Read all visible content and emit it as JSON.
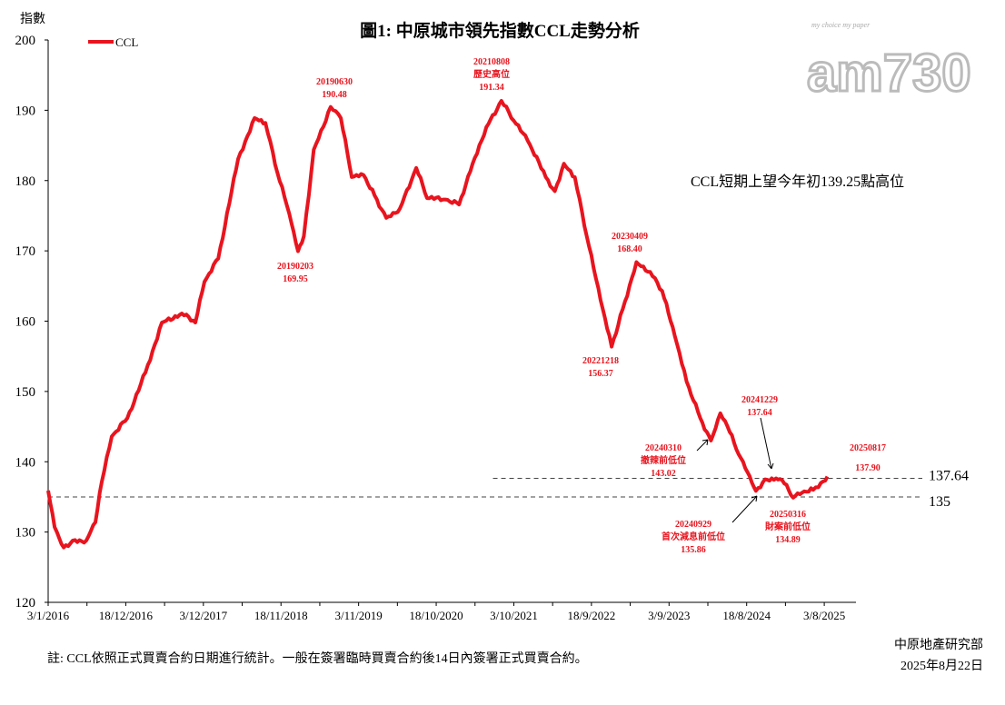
{
  "chart_data": {
    "type": "line",
    "title": "圖1: 中原城市領先指數CCL走勢分析",
    "ylabel": "指數",
    "xlabel": "",
    "ylim": [
      120,
      200
    ],
    "yticks": [
      120,
      130,
      140,
      150,
      160,
      170,
      180,
      190,
      200
    ],
    "xlim": [
      "2016-01-03",
      "2025-12-24"
    ],
    "xtick_labels": [
      "3/1/2016",
      "18/12/2016",
      "3/12/2017",
      "18/11/2018",
      "3/11/2019",
      "18/10/2020",
      "3/10/2021",
      "18/9/2022",
      "3/9/2023",
      "18/8/2024",
      "3/8/2025"
    ],
    "xtick_dates": [
      "2016-01-03",
      "2016-12-18",
      "2017-12-03",
      "2018-11-18",
      "2019-11-03",
      "2020-10-18",
      "2021-10-03",
      "2022-09-18",
      "2023-09-03",
      "2024-08-18",
      "2025-08-03"
    ],
    "grid": false,
    "legend_placement": "top-left",
    "series": [
      {
        "name": "CCL",
        "color": "#e8141e",
        "x": [
          "2016-01-03",
          "2016-02-01",
          "2016-03-13",
          "2016-04-23",
          "2016-06-23",
          "2016-08-03",
          "2016-09-01",
          "2016-10-16",
          "2016-12-25",
          "2017-03-17",
          "2017-05-30",
          "2017-08-28",
          "2017-10-28",
          "2017-12-08",
          "2018-02-08",
          "2018-05-09",
          "2018-07-22",
          "2018-09-09",
          "2018-11-02",
          "2018-12-25",
          "2019-02-03",
          "2019-03-01",
          "2019-04-15",
          "2019-06-30",
          "2019-08-15",
          "2019-10-03",
          "2019-11-25",
          "2020-01-14",
          "2020-03-07",
          "2020-05-07",
          "2020-07-20",
          "2020-09-07",
          "2020-11-28",
          "2021-01-29",
          "2021-03-31",
          "2021-06-01",
          "2021-08-08",
          "2021-10-03",
          "2021-12-04",
          "2022-02-24",
          "2022-04-06",
          "2022-05-17",
          "2022-07-05",
          "2022-08-28",
          "2022-10-29",
          "2022-12-18",
          "2023-02-06",
          "2023-04-09",
          "2023-06-10",
          "2023-08-03",
          "2023-09-29",
          "2023-11-21",
          "2024-01-22",
          "2024-03-10",
          "2024-04-21",
          "2024-05-24",
          "2024-07-12",
          "2024-08-22",
          "2024-09-29",
          "2024-11-09",
          "2024-12-29",
          "2025-01-25",
          "2025-03-16",
          "2025-04-25",
          "2025-06-14",
          "2025-07-19",
          "2025-08-17"
        ],
        "values": [
          135.9,
          130.7,
          127.8,
          128.8,
          128.8,
          131.4,
          137.2,
          143.6,
          146.2,
          152.7,
          159.8,
          161.1,
          159.8,
          165.6,
          168.9,
          183.1,
          188.9,
          188.2,
          181.1,
          175.3,
          169.95,
          172.1,
          184.4,
          190.48,
          188.9,
          180.5,
          180.8,
          177.9,
          174.7,
          176.0,
          181.8,
          177.5,
          177.3,
          176.6,
          182.4,
          187.6,
          191.34,
          188.5,
          185.7,
          180.5,
          178.5,
          182.4,
          180.5,
          172.1,
          163.0,
          156.37,
          161.7,
          168.4,
          167.0,
          164.3,
          157.9,
          151.4,
          146.2,
          143.02,
          146.9,
          145.0,
          141.1,
          138.5,
          135.86,
          137.5,
          137.64,
          137.4,
          134.89,
          135.6,
          136.0,
          137.0,
          137.9
        ]
      }
    ],
    "reference_lines": [
      {
        "value": 137.64,
        "label": "137.64",
        "from": "2021-07-01"
      },
      {
        "value": 135,
        "label": "135",
        "from": "2016-01-03"
      }
    ],
    "annotations": [
      {
        "lines": [
          "20190630",
          "190.48"
        ]
      },
      {
        "lines": [
          "20210808",
          "歷史高位",
          "191.34"
        ]
      },
      {
        "lines": [
          "20190203",
          "169.95"
        ]
      },
      {
        "lines": [
          "20230409",
          "168.40"
        ]
      },
      {
        "lines": [
          "20221218",
          "156.37"
        ]
      },
      {
        "lines": [
          "20240310",
          "撤辣前低位",
          "143.02"
        ]
      },
      {
        "lines": [
          "20240929",
          "首次減息前低位",
          "135.86"
        ]
      },
      {
        "lines": [
          "20241229",
          "137.64"
        ]
      },
      {
        "lines": [
          "20250316",
          "財案前低位",
          "134.89"
        ]
      },
      {
        "lines": [
          "20250817",
          "137.90"
        ]
      }
    ],
    "note_text": "CCL短期上望今年初139.25點高位"
  },
  "footer": {
    "note": "註: CCL依照正式買賣合約日期進行統計。一般在簽署臨時買賣合約後14日內簽署正式買賣合約。",
    "source": "中原地產研究部",
    "date": "2025年8月22日"
  },
  "logo": {
    "text": "am730",
    "tagline": "my choice my paper"
  }
}
